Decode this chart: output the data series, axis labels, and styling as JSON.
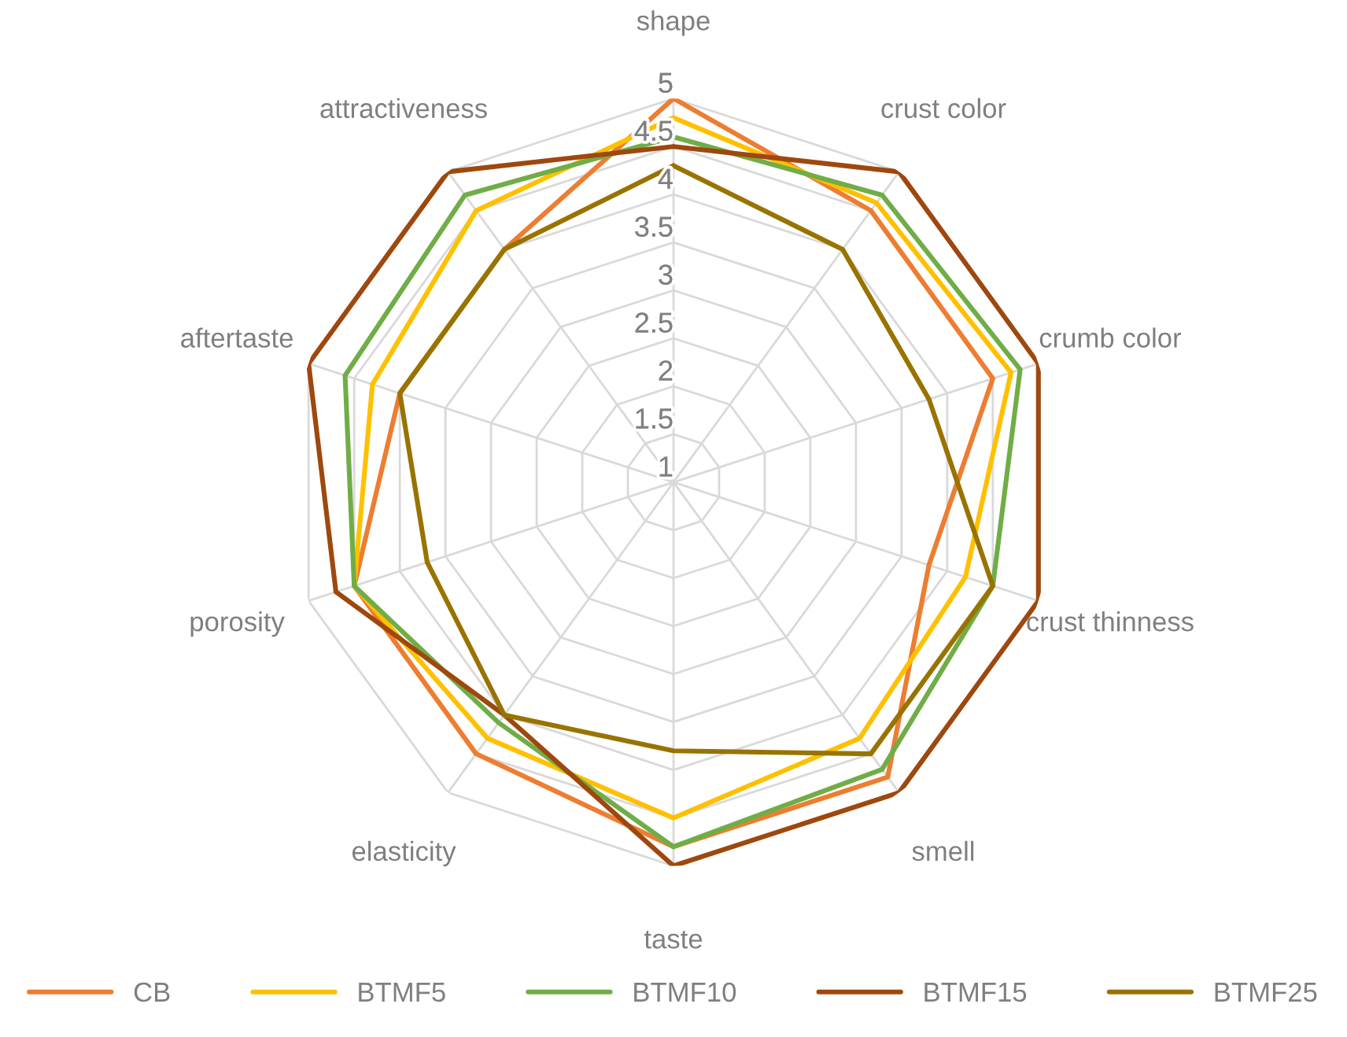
{
  "chart_data": {
    "type": "radar",
    "categories": [
      "shape",
      "crust color",
      "crumb color",
      "crust thinness",
      "smell",
      "taste",
      "elasticity",
      "porosity",
      "aftertaste",
      "attractiveness"
    ],
    "series": [
      {
        "name": "CB",
        "color": "#ed7d31",
        "values": [
          5.0,
          4.5,
          4.5,
          3.8,
          4.8,
          4.8,
          4.5,
          4.5,
          4.0,
          4.0
        ]
      },
      {
        "name": "BTMF5",
        "color": "#ffc000",
        "values": [
          4.8,
          4.6,
          4.7,
          4.2,
          4.3,
          4.5,
          4.3,
          4.5,
          4.3,
          4.5
        ]
      },
      {
        "name": "BTMF10",
        "color": "#70ad47",
        "values": [
          4.6,
          4.7,
          4.8,
          4.5,
          4.7,
          4.8,
          4.1,
          4.5,
          4.6,
          4.7
        ]
      },
      {
        "name": "BTMF15",
        "color": "#9e480e",
        "values": [
          4.5,
          5.0,
          5.0,
          5.0,
          5.0,
          5.0,
          4.0,
          4.7,
          5.0,
          5.0
        ]
      },
      {
        "name": "BTMF25",
        "color": "#997300",
        "values": [
          4.3,
          4.0,
          3.8,
          4.5,
          4.5,
          3.8,
          4.0,
          3.7,
          4.0,
          4.0
        ]
      }
    ],
    "ylim": [
      1,
      5
    ],
    "yticks": [
      1,
      1.5,
      2,
      2.5,
      3,
      3.5,
      4,
      4.5,
      5
    ],
    "grid": true,
    "legend": "bottom",
    "marker": "none",
    "line_style": "solid"
  }
}
